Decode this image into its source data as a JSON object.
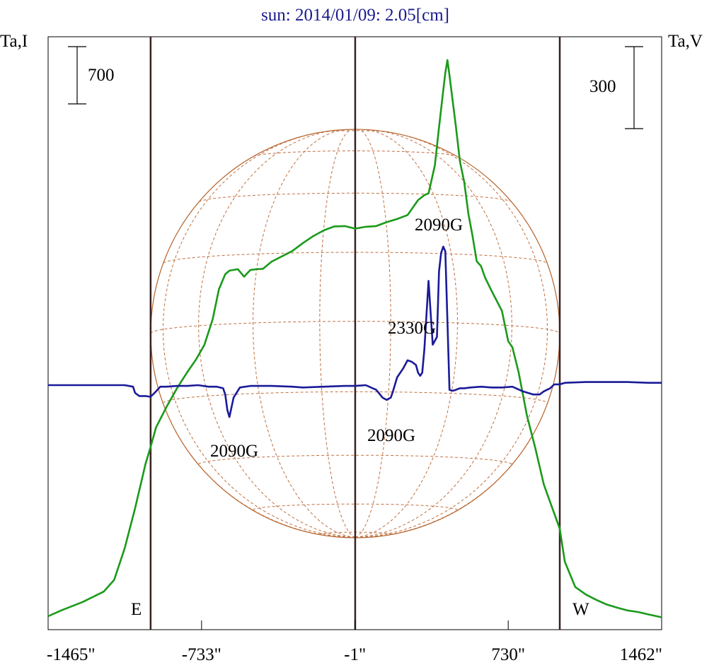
{
  "chart_data": {
    "type": "line",
    "title": "sun: 2014/01/09: 2.05[cm]",
    "ylabel_left": "Ta,I",
    "ylabel_right": "Ta,V",
    "xlim": [
      -1465,
      1462
    ],
    "x_ticks": [
      {
        "value": -1465,
        "label": "-1465\""
      },
      {
        "value": -733,
        "label": "-733\""
      },
      {
        "value": -1,
        "label": "-1\""
      },
      {
        "value": 730,
        "label": "730\""
      },
      {
        "value": 1462,
        "label": "1462\""
      }
    ],
    "scale_bars": [
      {
        "axis": "left",
        "label": "700"
      },
      {
        "axis": "right",
        "label": "300"
      }
    ],
    "limb_markers": [
      {
        "x": -976,
        "label": "E"
      },
      {
        "x": 0,
        "label": ""
      },
      {
        "x": 976,
        "label": "W"
      }
    ],
    "i_scale_per_700": 81,
    "v_scale_per_300": 116,
    "series": [
      {
        "key": "I",
        "color": "#1a9a1a",
        "x": [
          -1465,
          -1400,
          -1300,
          -1200,
          -1150,
          -1100,
          -1050,
          -1000,
          -976,
          -950,
          -900,
          -850,
          -800,
          -760,
          -720,
          -680,
          -650,
          -620,
          -600,
          -560,
          -530,
          -500,
          -470,
          -440,
          -400,
          -300,
          -250,
          -200,
          -150,
          -100,
          -50,
          0,
          50,
          100,
          150,
          200,
          250,
          300,
          330,
          350,
          380,
          400,
          420,
          430,
          440,
          450,
          480,
          500,
          520,
          540,
          560,
          580,
          600,
          620,
          650,
          700,
          730,
          750,
          780,
          820,
          860,
          900,
          940,
          976,
          1000,
          1050,
          1100,
          1150,
          1200,
          1250,
          1300,
          1350,
          1400,
          1462
        ],
        "values": [
          0,
          170,
          400,
          690,
          1020,
          1900,
          3030,
          4280,
          4750,
          5300,
          5880,
          6400,
          6860,
          7200,
          7610,
          8330,
          9180,
          9600,
          9700,
          9740,
          9530,
          9720,
          9740,
          9750,
          9950,
          10250,
          10470,
          10670,
          10830,
          10940,
          10950,
          10880,
          10930,
          10950,
          11060,
          11150,
          11260,
          11680,
          11820,
          11870,
          12650,
          13720,
          14760,
          15250,
          15610,
          15180,
          13770,
          12760,
          12190,
          11300,
          10670,
          9960,
          9830,
          9500,
          9140,
          8570,
          7720,
          7550,
          6840,
          5620,
          4700,
          3700,
          3040,
          2460,
          1530,
          820,
          610,
          460,
          330,
          240,
          160,
          120,
          50,
          -30
        ]
      },
      {
        "key": "V",
        "color": "#1a1a99",
        "x": [
          -1465,
          -1100,
          -1060,
          -1050,
          -1030,
          -1000,
          -976,
          -950,
          -930,
          -900,
          -850,
          -800,
          -750,
          -700,
          -660,
          -630,
          -620,
          -610,
          -600,
          -580,
          -550,
          -500,
          -400,
          -300,
          -250,
          -150,
          -50,
          0,
          50,
          100,
          130,
          150,
          170,
          180,
          200,
          230,
          250,
          270,
          290,
          300,
          310,
          320,
          330,
          350,
          370,
          390,
          400,
          410,
          420,
          430,
          440,
          450,
          460,
          470,
          480,
          500,
          520,
          550,
          600,
          650,
          700,
          750,
          800,
          850,
          880,
          900,
          930,
          950,
          976,
          1000,
          1100,
          1200,
          1300,
          1400,
          1462
        ],
        "values": [
          0,
          0,
          -10,
          -50,
          -70,
          -70,
          -75,
          -40,
          -10,
          -10,
          -5,
          -5,
          0,
          -10,
          -10,
          -20,
          -60,
          -160,
          -205,
          -80,
          -15,
          -5,
          -5,
          -10,
          -15,
          -10,
          -5,
          -5,
          0,
          -30,
          -80,
          -95,
          -80,
          -40,
          50,
          110,
          160,
          150,
          130,
          80,
          60,
          80,
          230,
          670,
          260,
          310,
          730,
          850,
          890,
          860,
          410,
          -30,
          -35,
          -35,
          -30,
          -20,
          -20,
          -15,
          -10,
          -15,
          -15,
          -10,
          -40,
          -60,
          -60,
          -40,
          -20,
          5,
          5,
          15,
          20,
          20,
          20,
          15,
          15
        ]
      }
    ],
    "annotations": [
      {
        "text": "2090G",
        "x": -530,
        "series": "V",
        "position": "below-left"
      },
      {
        "text": "2090G",
        "x": 220,
        "series": "V",
        "position": "below"
      },
      {
        "text": "2330G",
        "x": 310,
        "series": "V",
        "position": "above-left"
      },
      {
        "text": "2090G",
        "x": 560,
        "series": "I",
        "position": "below"
      }
    ]
  }
}
